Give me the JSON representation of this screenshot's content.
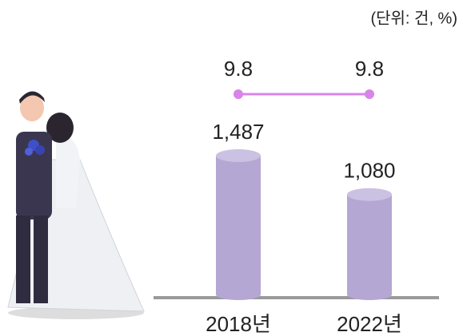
{
  "chart_data": {
    "type": "bar",
    "unit_note": "(단위: 건, %)",
    "categories": [
      "2018년",
      "2022년"
    ],
    "series": [
      {
        "type": "bar",
        "color": "#b4a7d3",
        "values": [
          1487,
          1080
        ],
        "value_labels": [
          "1,487",
          "1,080"
        ]
      },
      {
        "type": "line",
        "color": "#d884e8",
        "values": [
          9.8,
          9.8
        ]
      }
    ]
  }
}
